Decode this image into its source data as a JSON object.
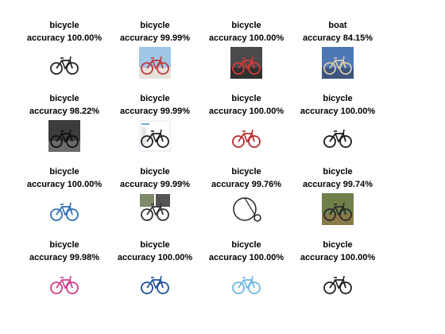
{
  "results": [
    {
      "prediction": "bicycle",
      "accuracy": "accuracy 100.00%",
      "image": "black-road-bicycle-icon",
      "bg": "#ffffff",
      "frame": "#ffffff",
      "color": "#222222"
    },
    {
      "prediction": "bicycle",
      "accuracy": "accuracy 99.99%",
      "image": "red-beach-cruiser-photo-icon",
      "bg": "#9fc6e6",
      "frame": "#e8e3da",
      "color": "#c23a3a"
    },
    {
      "prediction": "bicycle",
      "accuracy": "accuracy 100.00%",
      "image": "red-bicycle-dark-photo-icon",
      "bg": "#4a4a4a",
      "frame": "#2f2f2f",
      "color": "#d23b3b"
    },
    {
      "prediction": "boat",
      "accuracy": "accuracy 84.15%",
      "image": "street-scene-photo-icon",
      "bg": "#4d78b5",
      "frame": "#3b5580",
      "color": "#d9cba6"
    },
    {
      "prediction": "bicycle",
      "accuracy": "accuracy 98.22%",
      "image": "rider-dark-photo-icon",
      "bg": "#3c3c3c",
      "frame": "#6b6b6b",
      "color": "#111111"
    },
    {
      "prediction": "bicycle",
      "accuracy": "accuracy 99.99%",
      "image": "bicycle-document-icon",
      "bg": "#ffffff",
      "frame": "#d9e6ef",
      "color": "#222222"
    },
    {
      "prediction": "bicycle",
      "accuracy": "accuracy 100.00%",
      "image": "red-tandem-bicycle-icon",
      "bg": "#ffffff",
      "frame": "#ffffff",
      "color": "#b82c2c"
    },
    {
      "prediction": "bicycle",
      "accuracy": "accuracy 100.00%",
      "image": "black-road-bicycle-icon",
      "bg": "#ffffff",
      "frame": "#ffffff",
      "color": "#1a1a1a"
    },
    {
      "prediction": "bicycle",
      "accuracy": "accuracy 100.00%",
      "image": "blue-road-bicycle-icon",
      "bg": "#ffffff",
      "frame": "#ffffff",
      "color": "#2f6fb8"
    },
    {
      "prediction": "bicycle",
      "accuracy": "accuracy 99.99%",
      "image": "bicycle-parts-collage-icon",
      "bg": "#ffffff",
      "frame": "#cfcfcf",
      "color": "#333333"
    },
    {
      "prediction": "bicycle",
      "accuracy": "accuracy 99.76%",
      "image": "penny-farthing-icon",
      "bg": "#ffffff",
      "frame": "#bdbdbd",
      "color": "#222222"
    },
    {
      "prediction": "bicycle",
      "accuracy": "accuracy 99.74%",
      "image": "bicycle-in-grass-photo-icon",
      "bg": "#6f7f4a",
      "frame": "#8a7a4a",
      "color": "#2b2b2b"
    },
    {
      "prediction": "bicycle",
      "accuracy": "accuracy 99.98%",
      "image": "pink-kids-bicycle-icon",
      "bg": "#ffffff",
      "frame": "#ffffff",
      "color": "#d43c8f"
    },
    {
      "prediction": "bicycle",
      "accuracy": "accuracy 100.00%",
      "image": "blue-mountain-bicycle-icon",
      "bg": "#ffffff",
      "frame": "#ffffff",
      "color": "#1f4f9a"
    },
    {
      "prediction": "bicycle",
      "accuracy": "accuracy 100.00%",
      "image": "light-blue-cruiser-bicycle-icon",
      "bg": "#ffffff",
      "frame": "#ffffff",
      "color": "#6fb7e0"
    },
    {
      "prediction": "bicycle",
      "accuracy": "accuracy 100.00%",
      "image": "black-red-ebike-icon",
      "bg": "#ffffff",
      "frame": "#ffffff",
      "color": "#222222"
    }
  ]
}
